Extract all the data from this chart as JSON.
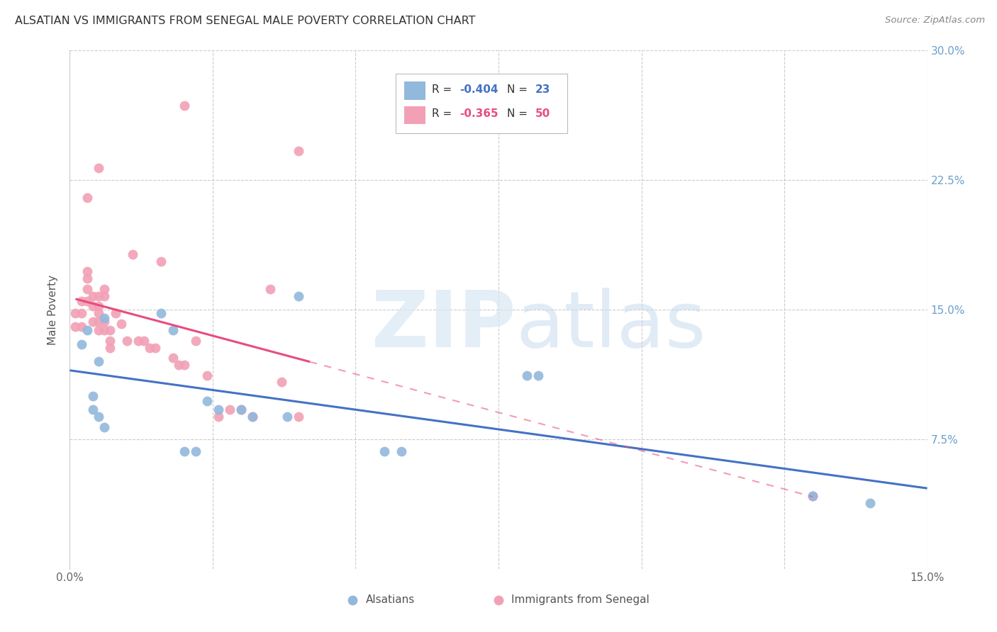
{
  "title": "ALSATIAN VS IMMIGRANTS FROM SENEGAL MALE POVERTY CORRELATION CHART",
  "source": "Source: ZipAtlas.com",
  "ylabel": "Male Poverty",
  "xlim": [
    0.0,
    0.15
  ],
  "ylim": [
    0.0,
    0.3
  ],
  "legend_label1": "Alsatians",
  "legend_label2": "Immigrants from Senegal",
  "blue_color": "#92B8DC",
  "pink_color": "#F2A0B5",
  "blue_line_color": "#4472C4",
  "pink_line_color": "#E84C7D",
  "background_color": "#FFFFFF",
  "grid_color": "#CCCCCC",
  "right_axis_color": "#6AA0CC",
  "title_color": "#333333",
  "alsatian_x": [
    0.002,
    0.003,
    0.004,
    0.004,
    0.005,
    0.005,
    0.006,
    0.006,
    0.016,
    0.018,
    0.02,
    0.022,
    0.024,
    0.026,
    0.03,
    0.032,
    0.038,
    0.04,
    0.055,
    0.058,
    0.08,
    0.082,
    0.13,
    0.14
  ],
  "alsatian_y": [
    0.13,
    0.138,
    0.092,
    0.1,
    0.12,
    0.088,
    0.082,
    0.145,
    0.148,
    0.138,
    0.068,
    0.068,
    0.097,
    0.092,
    0.092,
    0.088,
    0.088,
    0.158,
    0.068,
    0.068,
    0.112,
    0.112,
    0.042,
    0.038
  ],
  "senegal_x": [
    0.001,
    0.001,
    0.002,
    0.002,
    0.002,
    0.003,
    0.003,
    0.003,
    0.003,
    0.004,
    0.004,
    0.004,
    0.005,
    0.005,
    0.005,
    0.005,
    0.005,
    0.006,
    0.006,
    0.006,
    0.006,
    0.007,
    0.007,
    0.007,
    0.008,
    0.009,
    0.01,
    0.011,
    0.012,
    0.013,
    0.014,
    0.015,
    0.016,
    0.018,
    0.019,
    0.02,
    0.022,
    0.024,
    0.026,
    0.028,
    0.03,
    0.032,
    0.035,
    0.037,
    0.04,
    0.13,
    0.02,
    0.04,
    0.005,
    0.003
  ],
  "senegal_y": [
    0.148,
    0.14,
    0.155,
    0.148,
    0.14,
    0.172,
    0.168,
    0.162,
    0.155,
    0.158,
    0.152,
    0.143,
    0.158,
    0.152,
    0.148,
    0.143,
    0.138,
    0.162,
    0.158,
    0.143,
    0.138,
    0.138,
    0.132,
    0.128,
    0.148,
    0.142,
    0.132,
    0.182,
    0.132,
    0.132,
    0.128,
    0.128,
    0.178,
    0.122,
    0.118,
    0.118,
    0.132,
    0.112,
    0.088,
    0.092,
    0.092,
    0.088,
    0.162,
    0.108,
    0.088,
    0.042,
    0.268,
    0.242,
    0.232,
    0.215
  ]
}
